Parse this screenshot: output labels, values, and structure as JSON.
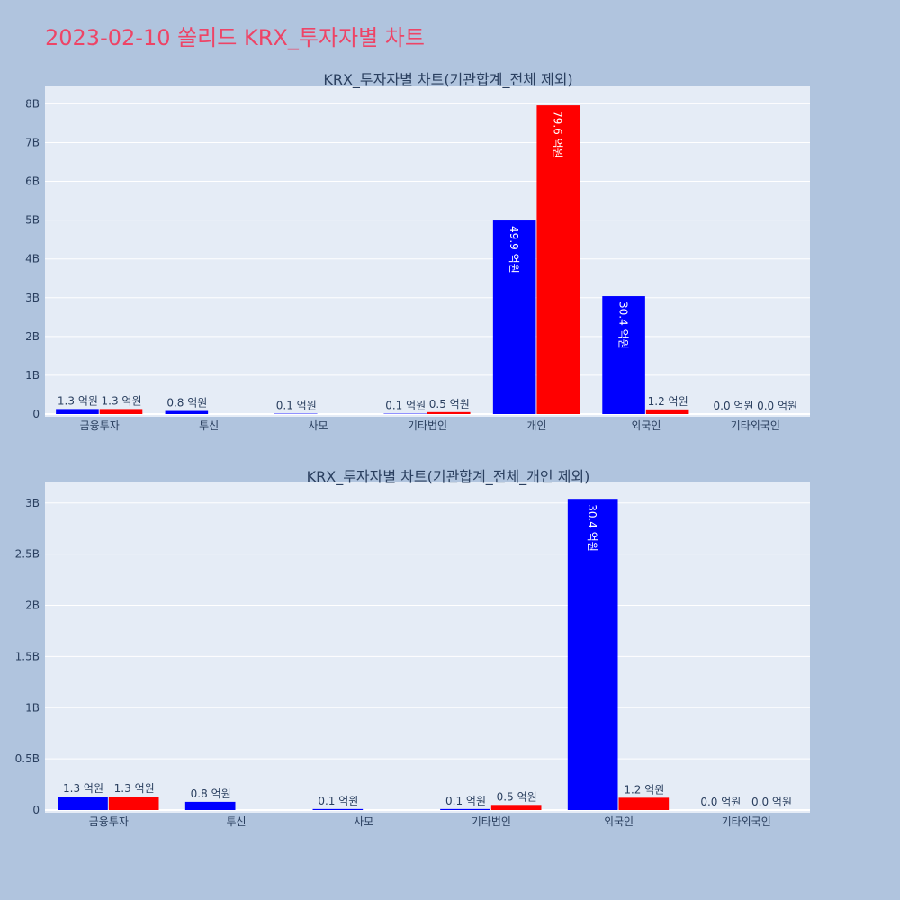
{
  "title": "2023-02-10 쏠리드 KRX_투자자별 차트",
  "colors": {
    "buy": "#0000ff",
    "sell": "#ff0000",
    "title": "#ee4466"
  },
  "chart_data": [
    {
      "type": "bar",
      "title": "KRX_투자자별 차트(기관합계_전체 제외)",
      "categories": [
        "금융투자",
        "투신",
        "사모",
        "기타법인",
        "개인",
        "외국인",
        "기타외국인"
      ],
      "series": [
        {
          "color": "#0000ff",
          "values": [
            130000000,
            80000000,
            10000000,
            10000000,
            4990000000,
            3040000000,
            0
          ],
          "labels": [
            "1.3 억원",
            "0.8 억원",
            "0.1 억원",
            "0.1 억원",
            "49.9 억원",
            "30.4 억원",
            "0.0 억원"
          ]
        },
        {
          "color": "#ff0000",
          "values": [
            130000000,
            null,
            null,
            50000000,
            7960000000,
            120000000,
            0
          ],
          "labels": [
            "1.3 억원",
            "",
            "",
            "0.5 억원",
            "79.6 억원",
            "1.2 억원",
            "0.0 억원"
          ]
        }
      ],
      "yticks": [
        0,
        1000000000,
        2000000000,
        3000000000,
        4000000000,
        5000000000,
        6000000000,
        7000000000,
        8000000000
      ],
      "ytick_labels": [
        "0",
        "1B",
        "2B",
        "3B",
        "4B",
        "5B",
        "6B",
        "7B",
        "8B"
      ],
      "ylim": [
        0,
        8450000000
      ]
    },
    {
      "type": "bar",
      "title": "KRX_투자자별 차트(기관합계_전체_개인 제외)",
      "categories": [
        "금융투자",
        "투신",
        "사모",
        "기타법인",
        "외국인",
        "기타외국인"
      ],
      "series": [
        {
          "color": "#0000ff",
          "values": [
            130000000,
            80000000,
            10000000,
            10000000,
            3040000000,
            0
          ],
          "labels": [
            "1.3 억원",
            "0.8 억원",
            "0.1 억원",
            "0.1 억원",
            "30.4 억원",
            "0.0 억원"
          ]
        },
        {
          "color": "#ff0000",
          "values": [
            130000000,
            null,
            null,
            50000000,
            120000000,
            0
          ],
          "labels": [
            "1.3 억원",
            "",
            "",
            "0.5 억원",
            "1.2 억원",
            "0.0 억원"
          ]
        }
      ],
      "yticks": [
        0,
        500000000,
        1000000000,
        1500000000,
        2000000000,
        2500000000,
        3000000000
      ],
      "ytick_labels": [
        "0",
        "0.5B",
        "1B",
        "1.5B",
        "2B",
        "2.5B",
        "3B"
      ],
      "ylim": [
        0,
        3200000000
      ]
    }
  ]
}
